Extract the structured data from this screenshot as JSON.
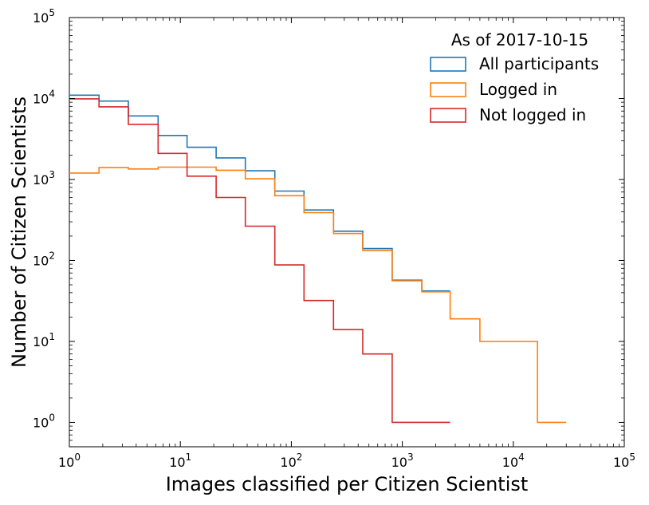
{
  "chart_data": {
    "type": "histogram-step",
    "xlabel": "Images classified per Citizen Scientist",
    "ylabel": "Number of Citizen Scientists",
    "xscale": "log",
    "yscale": "log",
    "xlim": [
      1,
      100000
    ],
    "ylim": [
      0.5,
      100000
    ],
    "x_ticks": [
      {
        "value": 1,
        "base": "10",
        "exp": "0"
      },
      {
        "value": 10,
        "base": "10",
        "exp": "1"
      },
      {
        "value": 100,
        "base": "10",
        "exp": "2"
      },
      {
        "value": 1000,
        "base": "10",
        "exp": "3"
      },
      {
        "value": 10000,
        "base": "10",
        "exp": "4"
      },
      {
        "value": 100000,
        "base": "10",
        "exp": "5"
      }
    ],
    "y_ticks": [
      {
        "value": 1,
        "base": "10",
        "exp": "0"
      },
      {
        "value": 10,
        "base": "10",
        "exp": "1"
      },
      {
        "value": 100,
        "base": "10",
        "exp": "2"
      },
      {
        "value": 1000,
        "base": "10",
        "exp": "3"
      },
      {
        "value": 10000,
        "base": "10",
        "exp": "4"
      },
      {
        "value": 100000,
        "base": "10",
        "exp": "5"
      }
    ],
    "bin_edges": [
      1,
      1.85,
      3.4,
      6.3,
      11.5,
      21,
      38.5,
      71,
      130,
      240,
      440,
      810,
      1500,
      2700,
      5000,
      16500,
      30000
    ],
    "legend": {
      "title": "As of 2017-10-15",
      "location": "upper-right"
    },
    "series": [
      {
        "name": "All participants",
        "color": "#1f77b4",
        "values": [
          11000,
          9300,
          6100,
          3500,
          2500,
          1850,
          1280,
          720,
          420,
          230,
          140,
          57,
          42,
          null,
          null,
          null
        ]
      },
      {
        "name": "Logged in",
        "color": "#ff7f0e",
        "values": [
          1200,
          1400,
          1350,
          1420,
          1420,
          1300,
          1020,
          630,
          390,
          215,
          133,
          56,
          41,
          19,
          10,
          1
        ]
      },
      {
        "name": "Not logged in",
        "color": "#d62728",
        "values": [
          9900,
          7900,
          4800,
          2100,
          1100,
          600,
          265,
          88,
          32,
          14,
          7,
          1,
          1,
          null,
          null,
          null
        ]
      }
    ]
  }
}
